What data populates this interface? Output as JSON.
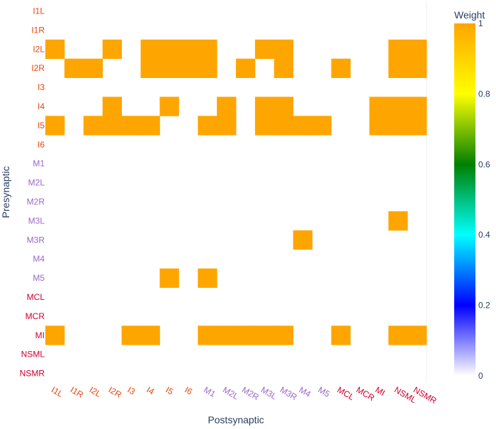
{
  "chart_data": {
    "type": "heatmap",
    "xlabel": "Postsynaptic",
    "ylabel": "Presynaptic",
    "x": [
      "I1L",
      "I1R",
      "I2L",
      "I2R",
      "I3",
      "I4",
      "I5",
      "I6",
      "M1",
      "M2L",
      "M2R",
      "M3L",
      "M3R",
      "M4",
      "M5",
      "MCL",
      "MCR",
      "MI",
      "NSML",
      "NSMR"
    ],
    "y": [
      "I1L",
      "I1R",
      "I2L",
      "I2R",
      "I3",
      "I4",
      "I5",
      "I6",
      "M1",
      "M2L",
      "M2R",
      "M3L",
      "M3R",
      "M4",
      "M5",
      "MCL",
      "MCR",
      "MI",
      "NSML",
      "NSMR"
    ],
    "label_colors": {
      "I1L": "#e8460c",
      "I1R": "#e8460c",
      "I2L": "#e8460c",
      "I2R": "#e8460c",
      "I3": "#e8460c",
      "I4": "#e8460c",
      "I5": "#e8460c",
      "I6": "#e8460c",
      "M1": "#9966cc",
      "M2L": "#9966cc",
      "M2R": "#9966cc",
      "M3L": "#9966cc",
      "M3R": "#9966cc",
      "M4": "#9966cc",
      "M5": "#9966cc",
      "MCL": "#cc0033",
      "MCR": "#cc0033",
      "MI": "#cc0033",
      "NSML": "#cc0033",
      "NSMR": "#cc0033"
    },
    "z": [
      [
        0,
        0,
        0,
        0,
        0,
        0,
        0,
        0,
        0,
        0,
        0,
        0,
        0,
        0,
        0,
        0,
        0,
        0,
        0,
        0
      ],
      [
        0,
        0,
        0,
        0,
        0,
        0,
        0,
        0,
        0,
        0,
        0,
        0,
        0,
        0,
        0,
        0,
        0,
        0,
        0,
        0
      ],
      [
        1,
        0,
        0,
        1,
        0,
        1,
        1,
        1,
        1,
        0,
        0,
        1,
        1,
        0,
        0,
        0,
        0,
        0,
        1,
        1
      ],
      [
        0,
        1,
        1,
        0,
        0,
        1,
        1,
        1,
        1,
        0,
        1,
        0,
        1,
        0,
        0,
        1,
        0,
        0,
        1,
        1
      ],
      [
        0,
        0,
        0,
        0,
        0,
        0,
        0,
        0,
        0,
        0,
        0,
        0,
        0,
        0,
        0,
        0,
        0,
        0,
        0,
        0
      ],
      [
        0,
        0,
        0,
        1,
        0,
        0,
        1,
        0,
        0,
        1,
        0,
        1,
        1,
        0,
        0,
        0,
        0,
        1,
        1,
        1
      ],
      [
        1,
        0,
        1,
        1,
        1,
        1,
        0,
        0,
        1,
        1,
        0,
        1,
        1,
        1,
        1,
        0,
        0,
        1,
        1,
        1
      ],
      [
        0,
        0,
        0,
        0,
        0,
        0,
        0,
        0,
        0,
        0,
        0,
        0,
        0,
        0,
        0,
        0,
        0,
        0,
        0,
        0
      ],
      [
        0,
        0,
        0,
        0,
        0,
        0,
        0,
        0,
        0,
        0,
        0,
        0,
        0,
        0,
        0,
        0,
        0,
        0,
        0,
        0
      ],
      [
        0,
        0,
        0,
        0,
        0,
        0,
        0,
        0,
        0,
        0,
        0,
        0,
        0,
        0,
        0,
        0,
        0,
        0,
        0,
        0
      ],
      [
        0,
        0,
        0,
        0,
        0,
        0,
        0,
        0,
        0,
        0,
        0,
        0,
        0,
        0,
        0,
        0,
        0,
        0,
        0,
        0
      ],
      [
        0,
        0,
        0,
        0,
        0,
        0,
        0,
        0,
        0,
        0,
        0,
        0,
        0,
        0,
        0,
        0,
        0,
        0,
        1,
        0
      ],
      [
        0,
        0,
        0,
        0,
        0,
        0,
        0,
        0,
        0,
        0,
        0,
        0,
        0,
        1,
        0,
        0,
        0,
        0,
        0,
        0
      ],
      [
        0,
        0,
        0,
        0,
        0,
        0,
        0,
        0,
        0,
        0,
        0,
        0,
        0,
        0,
        0,
        0,
        0,
        0,
        0,
        0
      ],
      [
        0,
        0,
        0,
        0,
        0,
        0,
        1,
        0,
        1,
        0,
        0,
        0,
        0,
        0,
        0,
        0,
        0,
        0,
        0,
        0
      ],
      [
        0,
        0,
        0,
        0,
        0,
        0,
        0,
        0,
        0,
        0,
        0,
        0,
        0,
        0,
        0,
        0,
        0,
        0,
        0,
        0
      ],
      [
        0,
        0,
        0,
        0,
        0,
        0,
        0,
        0,
        0,
        0,
        0,
        0,
        0,
        0,
        0,
        0,
        0,
        0,
        0,
        0
      ],
      [
        1,
        0,
        0,
        0,
        1,
        1,
        0,
        0,
        1,
        1,
        1,
        1,
        1,
        0,
        0,
        1,
        0,
        0,
        1,
        1
      ],
      [
        0,
        0,
        0,
        0,
        0,
        0,
        0,
        0,
        0,
        0,
        0,
        0,
        0,
        0,
        0,
        0,
        0,
        0,
        0,
        0
      ],
      [
        0,
        0,
        0,
        0,
        0,
        0,
        0,
        0,
        0,
        0,
        0,
        0,
        0,
        0,
        0,
        0,
        0,
        0,
        0,
        0
      ]
    ],
    "cell_color_one": "#ffa500",
    "colorbar": {
      "title": "Weight",
      "range": [
        0,
        1
      ],
      "ticks": [
        "0",
        "0.2",
        "0.4",
        "0.6",
        "0.8",
        "1"
      ],
      "stops": [
        {
          "v": 0.0,
          "c": "#ffffff"
        },
        {
          "v": 0.2,
          "c": "#0000ff"
        },
        {
          "v": 0.4,
          "c": "#00ffff"
        },
        {
          "v": 0.6,
          "c": "#008000"
        },
        {
          "v": 0.8,
          "c": "#ffff00"
        },
        {
          "v": 1.0,
          "c": "#ffa500"
        }
      ]
    }
  }
}
